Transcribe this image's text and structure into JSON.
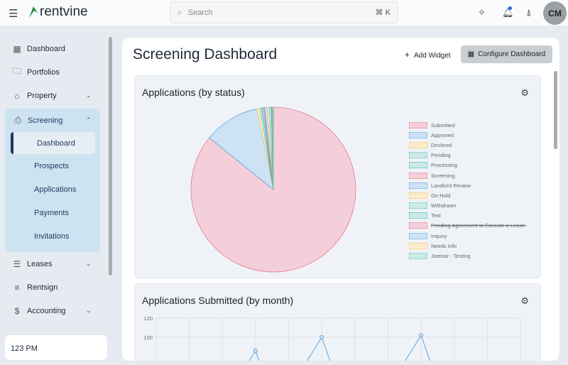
{
  "header": {
    "brand": "rentvine",
    "search_placeholder": "Search",
    "search_shortcut": "⌘ K",
    "avatar_initials": "CM"
  },
  "sidebar": {
    "items": [
      {
        "label": "Dashboard"
      },
      {
        "label": "Portfolios"
      },
      {
        "label": "Property"
      },
      {
        "label": "Screening"
      },
      {
        "label": "Leases"
      },
      {
        "label": "Rentsign"
      },
      {
        "label": "Accounting"
      }
    ],
    "screening_sub": [
      {
        "label": "Dashboard"
      },
      {
        "label": "Prospects"
      },
      {
        "label": "Applications"
      },
      {
        "label": "Payments"
      },
      {
        "label": "Invitations"
      }
    ],
    "clock": "123 PM"
  },
  "page": {
    "title": "Screening Dashboard",
    "add_widget": "Add Widget",
    "configure": "Configure Dashboard"
  },
  "chart_data": [
    {
      "type": "pie",
      "title": "Applications (by status)",
      "labels": [
        "Submitted",
        "Approved",
        "Declined",
        "Pending",
        "Processing",
        "Screening",
        "Landlord Review",
        "On Hold",
        "Withdrawn",
        "Test",
        "Pending Agreement to Execute a Lease.",
        "Inquiry",
        "Needs Info",
        "Joemar - Testing"
      ],
      "values": [
        860,
        110,
        6,
        4,
        3,
        2,
        5,
        4,
        4,
        1,
        0,
        1,
        1,
        1
      ],
      "hidden": [
        "Pending Agreement to Execute a Lease."
      ],
      "colors": [
        "#f4cfd9",
        "#cde2f5",
        "#fbeccb",
        "#cdeae8",
        "#cdeae8",
        "#f4cfd9",
        "#cde2f5",
        "#fbeccb",
        "#cdeae8",
        "#cdeae8",
        "#f4cfd9",
        "#cde2f5",
        "#fbeccb",
        "#cdeae8"
      ],
      "borders": [
        "#e8758f",
        "#5ea4e0",
        "#f3c35f",
        "#5cc2bb",
        "#2fb5ad",
        "#e8758f",
        "#5ea4e0",
        "#f3c35f",
        "#5cc2bb",
        "#2fb5ad",
        "#e8758f",
        "#5ea4e0",
        "#f3c35f",
        "#5cc2bb"
      ],
      "legend": "right"
    },
    {
      "type": "line",
      "title": "Applications Submitted (by month)",
      "yticks": [
        120,
        100
      ],
      "ylim": [
        0,
        120
      ],
      "values": [
        null,
        null,
        null,
        86,
        null,
        100,
        null,
        null,
        102,
        null,
        null,
        null
      ],
      "color": "#5ea4e0"
    }
  ]
}
